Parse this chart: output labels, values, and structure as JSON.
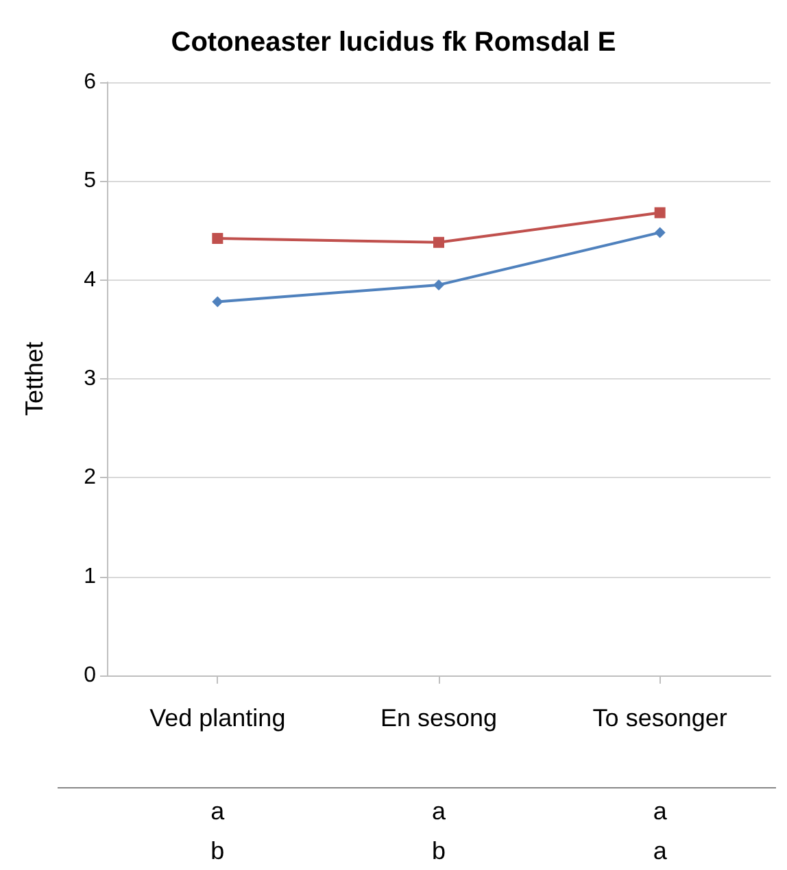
{
  "chart_data": {
    "type": "line",
    "title": "Cotoneaster lucidus fk Romsdal E",
    "ylabel": "Tetthet",
    "categories": [
      "Ved planting",
      "En sesong",
      "To sesonger"
    ],
    "series": [
      {
        "color": "#4f81bd",
        "marker": "diamond",
        "values": [
          3.78,
          3.95,
          4.48
        ]
      },
      {
        "color": "#c0504d",
        "marker": "square",
        "values": [
          4.42,
          4.38,
          4.68
        ]
      }
    ],
    "ylim": [
      0,
      6
    ],
    "yticks": [
      0,
      1,
      2,
      3,
      4,
      5,
      6
    ],
    "grid": "y",
    "annotations": [
      "a",
      "a",
      "a",
      "b",
      "b",
      "a"
    ]
  }
}
